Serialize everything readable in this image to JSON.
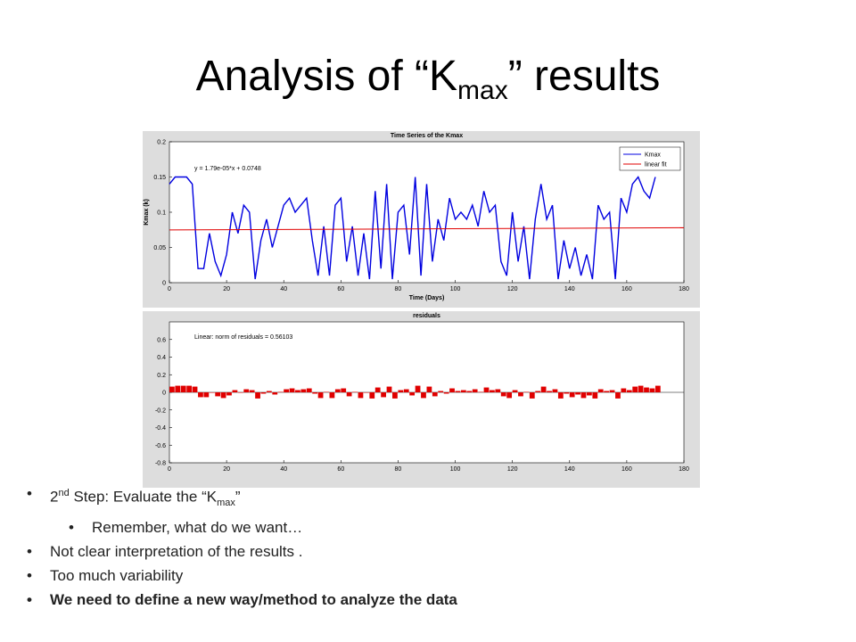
{
  "title": {
    "pre": "Analysis of “K",
    "sub": "max",
    "post": "” results"
  },
  "bullets": [
    {
      "pre": "2",
      "sup": "nd",
      "mid": " Step: Evaluate the “K",
      "sub": "max",
      "post": "”"
    },
    {
      "text": "Remember, what do we want…"
    },
    {
      "text": "Not clear interpretation of the results ."
    },
    {
      "text": "Too much variability"
    },
    {
      "text": "We need to define a new way/method to analyze the data"
    }
  ],
  "chart_data": [
    {
      "type": "line",
      "title": "Time Series of the Kmax",
      "xlabel": "Time (Days)",
      "ylabel": "Kmax (k)",
      "annotation": "y = 1.79e-05*x + 0.0748",
      "legend": "upper right",
      "xlim": [
        0,
        180
      ],
      "xticks": [
        0,
        20,
        40,
        60,
        80,
        100,
        120,
        140,
        160,
        180
      ],
      "ylim": [
        0,
        0.2
      ],
      "yticks": [
        0,
        0.05,
        0.1,
        0.15,
        0.2
      ],
      "series": [
        {
          "name": "Kmax",
          "color": "#0000e0",
          "x": [
            0,
            2,
            4,
            6,
            8,
            10,
            12,
            14,
            16,
            18,
            20,
            22,
            24,
            26,
            28,
            30,
            32,
            34,
            36,
            38,
            40,
            42,
            44,
            46,
            48,
            50,
            52,
            54,
            56,
            58,
            60,
            62,
            64,
            66,
            68,
            70,
            72,
            74,
            76,
            78,
            80,
            82,
            84,
            86,
            88,
            90,
            92,
            94,
            96,
            98,
            100,
            102,
            104,
            106,
            108,
            110,
            112,
            114,
            116,
            118,
            120,
            122,
            124,
            126,
            128,
            130,
            132,
            134,
            136,
            138,
            140,
            142,
            144,
            146,
            148,
            150,
            152,
            154,
            156,
            158,
            160,
            162,
            164,
            166,
            168,
            170
          ],
          "values": [
            0.14,
            0.15,
            0.15,
            0.15,
            0.14,
            0.02,
            0.02,
            0.07,
            0.03,
            0.01,
            0.04,
            0.1,
            0.07,
            0.11,
            0.1,
            0.005,
            0.06,
            0.09,
            0.05,
            0.08,
            0.11,
            0.12,
            0.1,
            0.11,
            0.12,
            0.06,
            0.01,
            0.08,
            0.01,
            0.11,
            0.12,
            0.03,
            0.08,
            0.01,
            0.07,
            0.005,
            0.13,
            0.02,
            0.14,
            0.005,
            0.1,
            0.11,
            0.04,
            0.15,
            0.01,
            0.14,
            0.03,
            0.09,
            0.06,
            0.12,
            0.09,
            0.1,
            0.09,
            0.11,
            0.08,
            0.13,
            0.1,
            0.11,
            0.03,
            0.01,
            0.1,
            0.03,
            0.08,
            0.005,
            0.09,
            0.14,
            0.09,
            0.11,
            0.005,
            0.06,
            0.02,
            0.05,
            0.01,
            0.04,
            0.005,
            0.11,
            0.09,
            0.1,
            0.005,
            0.12,
            0.1,
            0.14,
            0.15,
            0.13,
            0.12,
            0.15
          ]
        },
        {
          "name": "linear fit",
          "color": "#e00000",
          "x": [
            0,
            180
          ],
          "values": [
            0.0748,
            0.078
          ]
        }
      ]
    },
    {
      "type": "bar",
      "title": "residuals",
      "annotation": "Linear: norm of residuals = 0.56103",
      "color": "#e00000",
      "xlim": [
        0,
        180
      ],
      "xticks": [
        0,
        20,
        40,
        60,
        80,
        100,
        120,
        140,
        160,
        180
      ],
      "ylim": [
        -0.8,
        0.8
      ],
      "yticks": [
        -0.8,
        -0.6,
        -0.4,
        -0.2,
        0,
        0.2,
        0.4,
        0.6
      ],
      "x": [
        0,
        2,
        4,
        6,
        8,
        10,
        12,
        14,
        16,
        18,
        20,
        22,
        24,
        26,
        28,
        30,
        32,
        34,
        36,
        38,
        40,
        42,
        44,
        46,
        48,
        50,
        52,
        54,
        56,
        58,
        60,
        62,
        64,
        66,
        68,
        70,
        72,
        74,
        76,
        78,
        80,
        82,
        84,
        86,
        88,
        90,
        92,
        94,
        96,
        98,
        100,
        102,
        104,
        106,
        108,
        110,
        112,
        114,
        116,
        118,
        120,
        122,
        124,
        126,
        128,
        130,
        132,
        134,
        136,
        138,
        140,
        142,
        144,
        146,
        148,
        150,
        152,
        154,
        156,
        158,
        160,
        162,
        164,
        166,
        168,
        170
      ],
      "values": [
        0.065,
        0.075,
        0.075,
        0.075,
        0.065,
        -0.055,
        -0.055,
        -0.005,
        -0.045,
        -0.065,
        -0.035,
        0.025,
        -0.005,
        0.035,
        0.025,
        -0.07,
        -0.015,
        0.015,
        -0.025,
        0.005,
        0.035,
        0.045,
        0.025,
        0.035,
        0.045,
        -0.015,
        -0.065,
        0.005,
        -0.065,
        0.035,
        0.045,
        -0.045,
        0.005,
        -0.065,
        -0.005,
        -0.07,
        0.055,
        -0.055,
        0.065,
        -0.07,
        0.025,
        0.035,
        -0.035,
        0.075,
        -0.065,
        0.065,
        -0.045,
        0.015,
        -0.015,
        0.045,
        0.015,
        0.025,
        0.015,
        0.035,
        0.005,
        0.055,
        0.025,
        0.035,
        -0.045,
        -0.065,
        0.025,
        -0.045,
        0.005,
        -0.07,
        0.015,
        0.065,
        0.015,
        0.035,
        -0.07,
        -0.015,
        -0.055,
        -0.025,
        -0.065,
        -0.035,
        -0.07,
        0.035,
        0.015,
        0.025,
        -0.07,
        0.045,
        0.025,
        0.065,
        0.075,
        0.055,
        0.045,
        0.075
      ]
    }
  ]
}
